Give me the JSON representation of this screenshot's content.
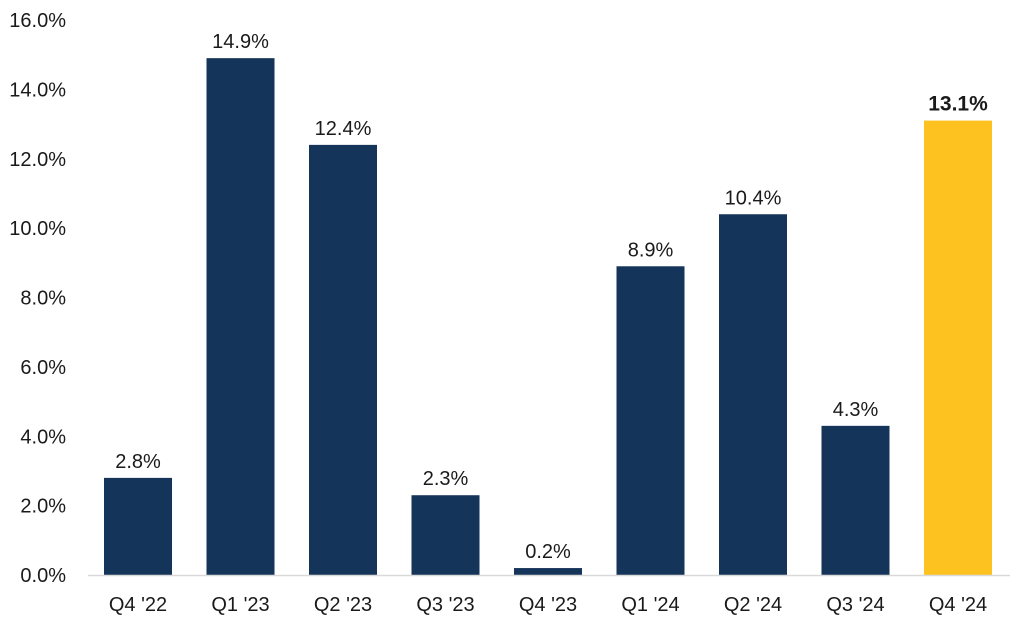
{
  "chart_data": {
    "type": "bar",
    "title": "",
    "xlabel": "",
    "ylabel": "",
    "categories": [
      "Q4 '22",
      "Q1 '23",
      "Q2 '23",
      "Q3 '23",
      "Q4 '23",
      "Q1 '24",
      "Q2 '24",
      "Q3 '24",
      "Q4 '24"
    ],
    "values": [
      2.8,
      14.9,
      12.4,
      2.3,
      0.2,
      8.9,
      10.4,
      4.3,
      13.1
    ],
    "data_labels": [
      "2.8%",
      "14.9%",
      "12.4%",
      "2.3%",
      "0.2%",
      "8.9%",
      "10.4%",
      "4.3%",
      "13.1%"
    ],
    "ylim": [
      0,
      16
    ],
    "y_ticks": [
      0,
      2,
      4,
      6,
      8,
      10,
      12,
      14,
      16
    ],
    "y_tick_labels": [
      "0.0%",
      "2.0%",
      "4.0%",
      "6.0%",
      "8.0%",
      "10.0%",
      "12.0%",
      "14.0%",
      "16.0%"
    ],
    "grid": false,
    "colors": {
      "bar": "#15345a",
      "highlight": "#fdc220",
      "axis": "#d9d9d9"
    },
    "highlight_index": 8
  }
}
